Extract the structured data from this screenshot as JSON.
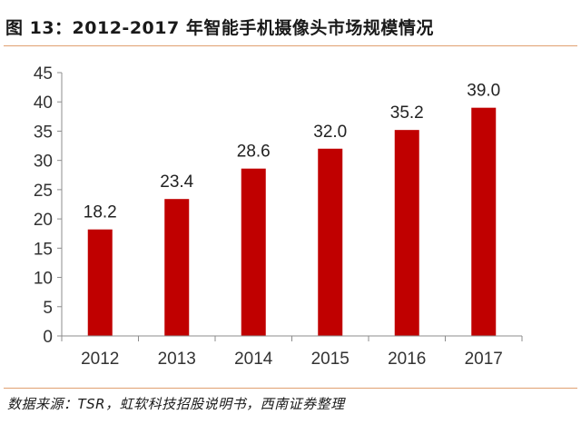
{
  "title": "图 13：2012-2017 年智能手机摄像头市场规模情况",
  "source": "数据来源：TSR，虹软科技招股说明书，西南证券整理",
  "chart_data": {
    "type": "bar",
    "categories": [
      "2012",
      "2013",
      "2014",
      "2015",
      "2016",
      "2017"
    ],
    "values": [
      18.2,
      23.4,
      28.6,
      32.0,
      35.2,
      39.0
    ],
    "data_labels": [
      "18.2",
      "23.4",
      "28.6",
      "32.0",
      "35.2",
      "39.0"
    ],
    "ylim": [
      0,
      45
    ],
    "yticks": [
      0,
      5,
      10,
      15,
      20,
      25,
      30,
      35,
      40,
      45
    ],
    "grid": false,
    "legend": "none",
    "bar_color": "#c00000"
  }
}
